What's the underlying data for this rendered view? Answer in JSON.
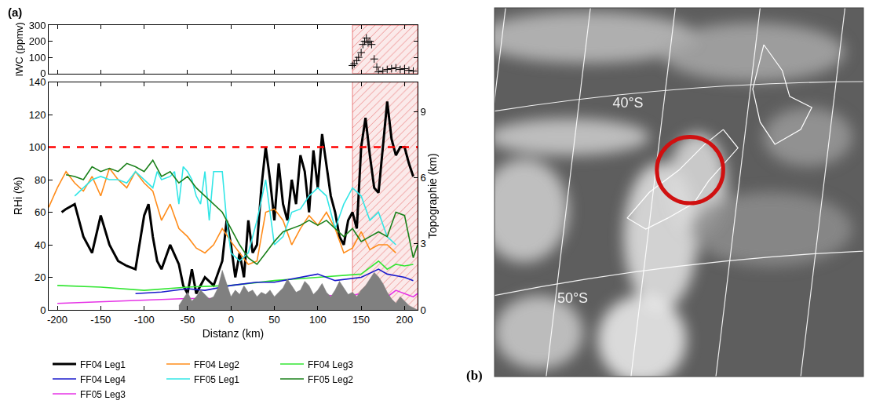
{
  "chart_data": [
    {
      "type": "scatter",
      "marker": "cross",
      "color": "#000000",
      "y_label": "IWC (ppmv)",
      "xlim": [
        -210,
        215
      ],
      "xticks": [
        -200,
        -150,
        -100,
        -50,
        0,
        50,
        100,
        150,
        200
      ],
      "ylim": [
        0,
        300
      ],
      "yticks": [
        0,
        100,
        200,
        300
      ],
      "tick_labels": "y",
      "highlight": {
        "range": [
          140,
          215
        ],
        "color": "#e03030"
      },
      "x": [
        140,
        142,
        145,
        147,
        150,
        152,
        154,
        156,
        158,
        160,
        162,
        165,
        168,
        170,
        175,
        180,
        185,
        190,
        195,
        200,
        205,
        210
      ],
      "values": [
        50,
        60,
        80,
        100,
        130,
        180,
        200,
        220,
        190,
        200,
        180,
        90,
        40,
        10,
        15,
        25,
        30,
        35,
        25,
        30,
        20,
        15
      ]
    },
    {
      "type": "line",
      "x_label": "Distanz (km)",
      "y_label": "RHi (%)",
      "y2_label": "Topographie (km)",
      "annotations": [
        "(a)"
      ],
      "xlim": [
        -210,
        215
      ],
      "xticks": [
        -200,
        -150,
        -100,
        -50,
        0,
        50,
        100,
        150,
        200
      ],
      "ylim": [
        0,
        140
      ],
      "yticks": [
        0,
        20,
        40,
        60,
        80,
        100,
        120,
        140
      ],
      "y2lim": [
        0,
        10.35
      ],
      "y2ticks": [
        0,
        3,
        6,
        9
      ],
      "legend": "bottom",
      "threshold": {
        "value": 100,
        "color": "#ff0000",
        "line_style": "dashed"
      },
      "highlight": {
        "range": [
          140,
          215
        ],
        "color": "#e03030"
      },
      "series": [
        {
          "type": "area",
          "axis": "y2",
          "color": "#808080",
          "x": [
            -60,
            -55,
            -50,
            -45,
            -40,
            -35,
            -30,
            -25,
            -20,
            -15,
            -10,
            -5,
            0,
            5,
            10,
            15,
            20,
            25,
            30,
            35,
            40,
            45,
            50,
            55,
            60,
            65,
            70,
            75,
            80,
            85,
            90,
            95,
            100,
            105,
            110,
            115,
            120,
            125,
            130,
            135,
            140,
            145,
            150,
            155,
            160,
            165,
            170,
            175,
            180,
            185,
            190,
            195,
            200,
            205,
            210,
            215
          ],
          "values": [
            0.2,
            0.5,
            0.8,
            0.4,
            0.6,
            0.9,
            0.7,
            0.5,
            0.6,
            1.0,
            1.8,
            1.2,
            0.6,
            0.9,
            0.7,
            1.1,
            0.8,
            0.9,
            0.6,
            0.8,
            0.7,
            0.9,
            0.6,
            0.8,
            1.0,
            1.4,
            1.1,
            0.8,
            0.9,
            1.3,
            1.1,
            0.7,
            0.9,
            1.2,
            0.8,
            0.6,
            0.9,
            1.3,
            1.0,
            0.7,
            0.8,
            0.6,
            0.9,
            1.1,
            1.4,
            1.7,
            1.5,
            1.2,
            0.8,
            0.5,
            0.3,
            0.6,
            0.4,
            0.2,
            0.1,
            0
          ]
        },
        {
          "name": "FF04 Leg1",
          "color": "#000000",
          "x": [
            -195,
            -190,
            -180,
            -170,
            -160,
            -150,
            -140,
            -130,
            -120,
            -110,
            -100,
            -95,
            -90,
            -85,
            -80,
            -70,
            -60,
            -55,
            -50,
            -45,
            -40,
            -30,
            -20,
            -10,
            -5,
            0,
            5,
            10,
            15,
            20,
            25,
            30,
            35,
            40,
            45,
            50,
            55,
            60,
            65,
            70,
            75,
            80,
            85,
            90,
            95,
            100,
            105,
            110,
            115,
            120,
            125,
            130,
            135,
            140,
            145,
            150,
            155,
            160,
            165,
            170,
            175,
            180,
            185,
            190,
            195,
            200,
            205,
            210
          ],
          "values": [
            60,
            62,
            65,
            45,
            35,
            58,
            40,
            30,
            27,
            25,
            58,
            65,
            45,
            30,
            25,
            40,
            28,
            15,
            10,
            25,
            10,
            20,
            15,
            30,
            55,
            40,
            20,
            35,
            20,
            55,
            35,
            40,
            75,
            100,
            80,
            55,
            90,
            65,
            55,
            80,
            65,
            95,
            85,
            60,
            98,
            75,
            108,
            90,
            70,
            60,
            45,
            40,
            55,
            60,
            50,
            100,
            118,
            95,
            75,
            72,
            100,
            128,
            105,
            95,
            100,
            100,
            90,
            82
          ]
        },
        {
          "name": "FF04 Leg2",
          "color": "#ff8c1a",
          "x": [
            -210,
            -200,
            -190,
            -180,
            -170,
            -160,
            -150,
            -140,
            -130,
            -120,
            -110,
            -100,
            -90,
            -80,
            -70,
            -60,
            -50,
            -40,
            -30,
            -20,
            -10,
            0,
            10,
            20,
            30,
            40,
            50,
            60,
            70,
            80,
            90,
            100,
            110,
            120,
            130,
            140,
            150,
            160,
            170,
            180,
            190
          ],
          "values": [
            63,
            75,
            85,
            78,
            73,
            82,
            70,
            87,
            80,
            75,
            85,
            78,
            73,
            55,
            65,
            50,
            45,
            38,
            35,
            40,
            50,
            42,
            35,
            28,
            30,
            60,
            62,
            55,
            40,
            50,
            58,
            52,
            60,
            50,
            35,
            38,
            48,
            37,
            40,
            40,
            35
          ]
        },
        {
          "name": "FF04 Leg3",
          "color": "#33e633",
          "x": [
            -200,
            -150,
            -100,
            -50,
            0,
            50,
            100,
            150,
            170,
            180,
            190,
            200,
            210
          ],
          "values": [
            15,
            14,
            12,
            14,
            15,
            18,
            20,
            22,
            30,
            25,
            28,
            27,
            28
          ]
        },
        {
          "name": "FF04 Leg4",
          "color": "#1a1acc",
          "x": [
            -110,
            -80,
            -50,
            -30,
            0,
            30,
            50,
            80,
            100,
            120,
            150,
            170,
            180,
            200,
            210
          ],
          "values": [
            10,
            11,
            13,
            12,
            15,
            17,
            17,
            20,
            22,
            18,
            20,
            25,
            22,
            20,
            18
          ]
        },
        {
          "name": "FF05 Leg1",
          "color": "#33e6e6",
          "x": [
            -180,
            -170,
            -160,
            -150,
            -140,
            -130,
            -120,
            -110,
            -100,
            -90,
            -85,
            -80,
            -70,
            -65,
            -60,
            -55,
            -50,
            -45,
            -40,
            -35,
            -30,
            -25,
            -20,
            -15,
            -10,
            -5,
            0,
            10,
            20,
            30,
            40,
            50,
            60,
            70,
            80,
            90,
            100,
            110,
            120,
            130,
            140,
            150,
            160,
            170,
            180,
            190
          ],
          "values": [
            70,
            75,
            80,
            82,
            80,
            80,
            78,
            85,
            80,
            75,
            85,
            80,
            82,
            85,
            65,
            88,
            85,
            80,
            70,
            65,
            85,
            55,
            85,
            85,
            85,
            55,
            35,
            30,
            35,
            55,
            80,
            40,
            45,
            60,
            62,
            70,
            75,
            70,
            50,
            65,
            75,
            70,
            55,
            60,
            45,
            40
          ]
        },
        {
          "name": "FF05 Leg2",
          "color": "#1a801a",
          "x": [
            -190,
            -180,
            -170,
            -160,
            -150,
            -140,
            -130,
            -120,
            -110,
            -100,
            -90,
            -80,
            -70,
            -60,
            -50,
            -40,
            -30,
            -20,
            -10,
            0,
            10,
            20,
            30,
            40,
            50,
            60,
            70,
            80,
            90,
            100,
            110,
            120,
            130,
            140,
            150,
            160,
            170,
            180,
            190,
            200,
            205,
            210,
            215
          ],
          "values": [
            83,
            82,
            80,
            88,
            85,
            87,
            85,
            90,
            88,
            85,
            92,
            82,
            85,
            78,
            82,
            75,
            70,
            65,
            60,
            50,
            40,
            32,
            28,
            35,
            42,
            48,
            50,
            52,
            55,
            52,
            55,
            50,
            45,
            50,
            42,
            45,
            48,
            45,
            60,
            58,
            45,
            32,
            40
          ]
        },
        {
          "name": "FF05 Leg3",
          "color": "#e633e6",
          "x": [
            -200,
            -150,
            -100,
            -50,
            0,
            30,
            60,
            90,
            110,
            130,
            150,
            170,
            180,
            190,
            200,
            210,
            215
          ],
          "values": [
            4,
            5,
            6,
            7,
            7,
            6,
            8,
            9,
            9,
            8,
            10,
            12,
            8,
            12,
            10,
            8,
            10
          ]
        }
      ]
    }
  ],
  "map": {
    "panel": "(b)",
    "labels": [
      "40°S",
      "50°S"
    ]
  }
}
